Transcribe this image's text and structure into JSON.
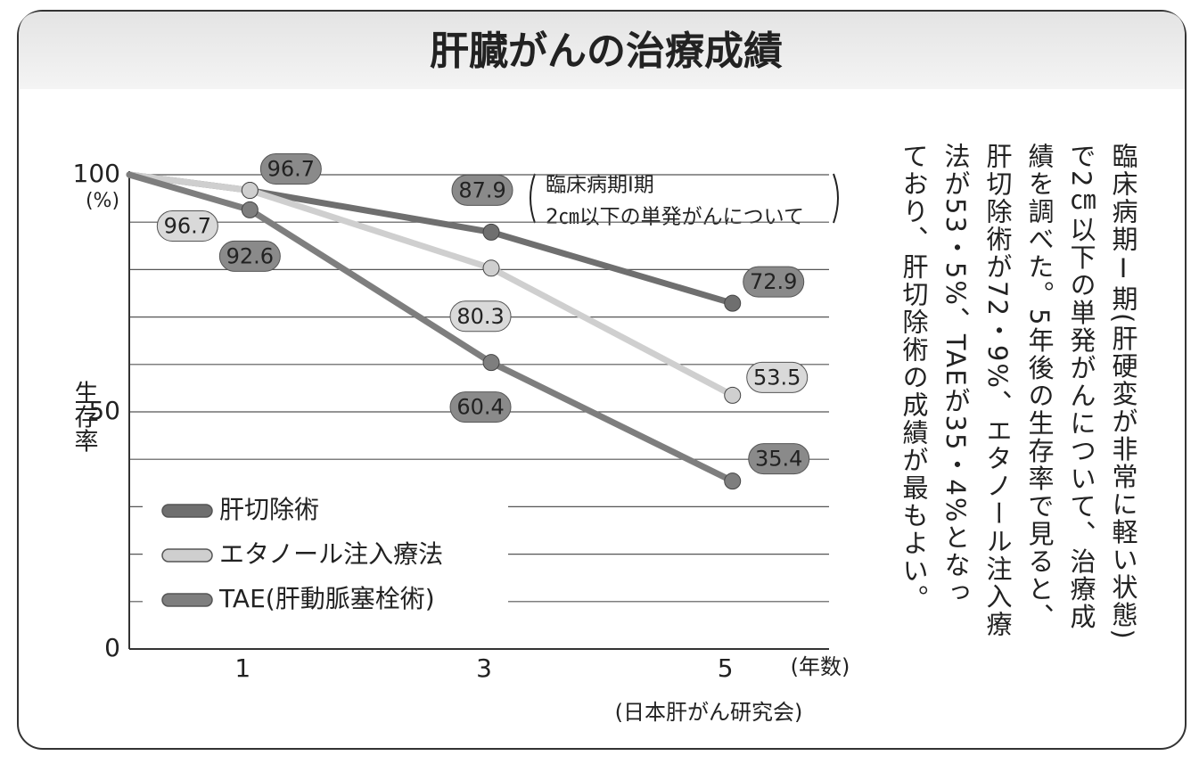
{
  "chart_data": {
    "type": "line",
    "title": "肝臓がんの治療成績",
    "x": [
      0,
      1,
      3,
      5
    ],
    "xlim": [
      0,
      5.8
    ],
    "xticks": [
      1,
      3,
      5
    ],
    "x_unit": "(年数)",
    "ylim": [
      0,
      100
    ],
    "yticks": [
      0,
      {
        "value": 10,
        "label": null
      },
      {
        "value": 20,
        "label": null
      },
      {
        "value": 30,
        "label": null
      },
      {
        "value": 40,
        "label": null
      },
      50,
      {
        "value": 60,
        "label": null
      },
      {
        "value": 70,
        "label": null
      },
      {
        "value": 80,
        "label": null
      },
      {
        "value": 90,
        "label": null
      },
      100
    ],
    "y_unit": "(%)",
    "ylabel": "生存率",
    "grid": true,
    "legend": "lower left",
    "series": [
      {
        "name": "肝切除術",
        "color": "#6f6f6f",
        "values": [
          100,
          96.7,
          87.9,
          72.9
        ]
      },
      {
        "name": "エタノール注入療法",
        "color": "#cfcfcf",
        "values": [
          100,
          96.7,
          80.3,
          53.5
        ]
      },
      {
        "name": "TAE(肝動脈塞栓術)",
        "color": "#7e7e7e",
        "values": [
          100,
          92.6,
          60.4,
          35.4
        ]
      }
    ],
    "annotation": [
      "臨床病期Ⅰ期",
      "2㎝以下の単発がんについて"
    ],
    "source": "(日本肝がん研究会)",
    "description": [
      "臨床病期Ⅰ期(肝硬変が非常に軽い状態)",
      "で2㎝以下の単発がんについて、治療成",
      "績を調べた。5年後の生存率で見ると、",
      "肝切除術が72・9%、エタノール注入療",
      "法が53・5%、TAEが35・4%となっ",
      "ており、肝切除術の成績が最もよい。"
    ]
  }
}
